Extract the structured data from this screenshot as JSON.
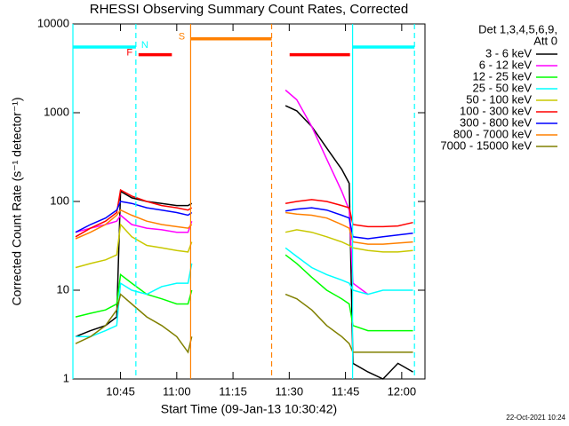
{
  "chart_data": {
    "type": "line",
    "title": "RHESSI Observing Summary Count Rates, Corrected",
    "xlabel": "Start Time (09-Jan-13 10:30:42)",
    "ylabel": "Corrected Count Rate (s⁻¹ detector⁻¹)",
    "footer": "22-Oct-2021 10:24",
    "legend_title": [
      "Det 1,3,4,5,6,9,",
      "Att 0"
    ],
    "log_y": true,
    "xlim": [
      632.3,
      726.2
    ],
    "xticks": [
      {
        "value": 645,
        "label": "10:45"
      },
      {
        "value": 660,
        "label": "11:00"
      },
      {
        "value": 675,
        "label": "11:15"
      },
      {
        "value": 690,
        "label": "11:30"
      },
      {
        "value": 705,
        "label": "11:45"
      },
      {
        "value": 720,
        "label": "12:00"
      }
    ],
    "ylim": [
      1,
      10000
    ],
    "yticks": [
      1,
      10,
      100,
      1000,
      10000
    ],
    "x": [
      633,
      637,
      641,
      644,
      645,
      648,
      652,
      656,
      660,
      663,
      664,
      676,
      689,
      692,
      696,
      700,
      704,
      706,
      707,
      711,
      715,
      719,
      723
    ],
    "series": [
      {
        "name": "3 - 6 keV",
        "color": "#000000",
        "values": [
          3,
          3.5,
          4,
          5,
          130,
          110,
          100,
          95,
          90,
          90,
          95,
          null,
          1200,
          1050,
          700,
          400,
          230,
          160,
          1.5,
          1.2,
          1,
          1.5,
          1.2
        ]
      },
      {
        "name": "6 - 12 keV",
        "color": "#ff00ff",
        "values": [
          45,
          50,
          55,
          60,
          70,
          55,
          50,
          48,
          45,
          45,
          60,
          null,
          1800,
          1400,
          700,
          300,
          130,
          80,
          12,
          9,
          null,
          null,
          null
        ]
      },
      {
        "name": "12 - 25 keV",
        "color": "#00ff00",
        "values": [
          5,
          5.5,
          6,
          7,
          15,
          12,
          9,
          8,
          7,
          7,
          10,
          null,
          25,
          20,
          14,
          10,
          8,
          7,
          4,
          3.5,
          3.5,
          3.5,
          3.5
        ]
      },
      {
        "name": "25 - 50 keV",
        "color": "#00ffff",
        "values": [
          3,
          3,
          3.5,
          4,
          12,
          10,
          9,
          11,
          12,
          12,
          20,
          null,
          30,
          24,
          18,
          15,
          13,
          12,
          10,
          9,
          10,
          10,
          10
        ]
      },
      {
        "name": "50 - 100 keV",
        "color": "#c8c800",
        "values": [
          18,
          20,
          22,
          25,
          55,
          40,
          32,
          30,
          28,
          27,
          35,
          null,
          45,
          48,
          45,
          40,
          35,
          32,
          30,
          28,
          27,
          27,
          28
        ]
      },
      {
        "name": "100 - 300 keV",
        "color": "#ff0000",
        "values": [
          40,
          50,
          60,
          75,
          135,
          115,
          100,
          90,
          85,
          80,
          85,
          null,
          95,
          100,
          105,
          100,
          90,
          85,
          55,
          52,
          52,
          53,
          58
        ]
      },
      {
        "name": "300 - 800 keV",
        "color": "#0000ff",
        "values": [
          45,
          55,
          65,
          80,
          100,
          95,
          85,
          80,
          75,
          70,
          75,
          null,
          78,
          82,
          85,
          80,
          70,
          65,
          40,
          38,
          40,
          42,
          44
        ]
      },
      {
        "name": "800 - 7000 keV",
        "color": "#ff8000",
        "values": [
          38,
          45,
          55,
          70,
          80,
          70,
          60,
          55,
          52,
          50,
          55,
          null,
          75,
          72,
          70,
          65,
          55,
          50,
          35,
          33,
          33,
          34,
          35
        ]
      },
      {
        "name": "7000 - 15000 keV",
        "color": "#808000",
        "values": [
          2.5,
          3,
          4,
          6,
          9,
          7,
          5,
          4,
          3,
          2,
          3,
          null,
          9,
          8,
          6,
          4,
          3,
          2.5,
          2,
          2,
          2,
          2,
          2
        ]
      }
    ],
    "flags": [
      {
        "label": "N",
        "color": "#00ffff",
        "level": 5500,
        "vlines": true,
        "intervals": [
          [
            632.3,
            649.1
          ],
          [
            706.9,
            723.4
          ]
        ]
      },
      {
        "label": "F",
        "color": "#ff0000",
        "level": 4500,
        "vlines": false,
        "intervals": [
          [
            649.8,
            658.7
          ],
          [
            690.1,
            706.2
          ]
        ]
      },
      {
        "label": "S",
        "color": "#ff8000",
        "level": 6800,
        "vlines": true,
        "intervals": [
          [
            663.7,
            685.3
          ]
        ]
      }
    ]
  }
}
